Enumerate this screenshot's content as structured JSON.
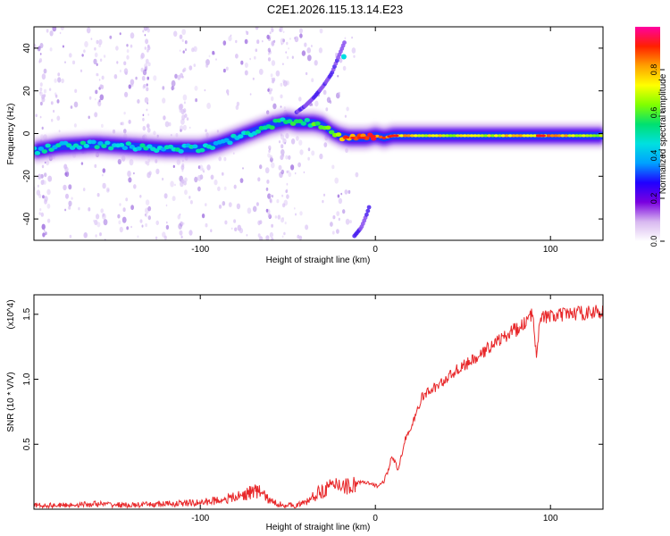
{
  "title": "C2E1.2026.115.13.14.E23",
  "chart_data": [
    {
      "type": "heatmap",
      "name": "spectrogram",
      "xlabel": "Height of straight line (km)",
      "ylabel": "Frequency (Hz)",
      "xlim": [
        -195,
        130
      ],
      "ylim": [
        -50,
        50
      ],
      "x_ticks": [
        -100,
        0,
        100
      ],
      "x_tick_labels": [
        "-100",
        "0",
        "100"
      ],
      "y_ticks": [
        -40,
        -20,
        0,
        20,
        40
      ],
      "y_tick_labels": [
        "-40",
        "-20",
        "0",
        "20",
        "40"
      ],
      "colorbar": {
        "label": "Normalized spectral amplitude",
        "range": [
          0.0,
          1.0
        ],
        "ticks": [
          0.0,
          0.2,
          0.4,
          0.6,
          0.8
        ],
        "tick_labels": [
          "0.0",
          "0.2",
          "0.4",
          "0.6",
          "0.8"
        ],
        "colors": [
          "#ffffff",
          "#d8b8f0",
          "#7a00e0",
          "#2000ff",
          "#00a0ff",
          "#00e0e0",
          "#00e070",
          "#80ff00",
          "#ffff00",
          "#ffa000",
          "#ff2000",
          "#ff00a0"
        ]
      },
      "ridge": {
        "x": [
          -195,
          -180,
          -160,
          -140,
          -120,
          -100,
          -90,
          -80,
          -70,
          -60,
          -55,
          -50,
          -45,
          -40,
          -35,
          -30,
          -25,
          -20,
          -15,
          -10,
          -5,
          0,
          5,
          10,
          20,
          40,
          60,
          80,
          100,
          120,
          130
        ],
        "y": [
          -8,
          -6,
          -5,
          -6,
          -7,
          -7,
          -5,
          -2,
          1,
          4,
          5,
          6,
          5,
          5,
          5,
          4,
          1,
          -1,
          -2,
          -2,
          -2,
          -1,
          -2,
          -1,
          -1,
          -1,
          -1,
          -1,
          -1,
          -1,
          -1
        ],
        "amplitude": [
          0.45,
          0.45,
          0.45,
          0.45,
          0.45,
          0.45,
          0.45,
          0.45,
          0.5,
          0.5,
          0.5,
          0.55,
          0.55,
          0.55,
          0.55,
          0.6,
          0.65,
          0.75,
          0.85,
          0.85,
          0.9,
          0.85,
          0.85,
          0.8,
          0.75,
          0.7,
          0.7,
          0.75,
          0.8,
          0.7,
          0.65
        ]
      },
      "secondary_ridge": {
        "x": [
          -45,
          -40,
          -35,
          -30,
          -25,
          -22,
          -20,
          -17
        ],
        "y": [
          10,
          13,
          17,
          22,
          28,
          34,
          38,
          44
        ]
      },
      "lower_ridge": {
        "x": [
          -12,
          -8,
          -5,
          -3
        ],
        "y": [
          -48,
          -44,
          -38,
          -33
        ]
      }
    },
    {
      "type": "line",
      "name": "snr",
      "xlabel": "Height of straight line (km)",
      "ylabel": "SNR (10 * V/V)",
      "ylabel_multiplier": "(x10^4)",
      "xlim": [
        -195,
        130
      ],
      "ylim": [
        0,
        1.65
      ],
      "x_ticks": [
        -100,
        0,
        100
      ],
      "x_tick_labels": [
        "-100",
        "0",
        "100"
      ],
      "y_ticks": [
        0.5,
        1.0,
        1.5
      ],
      "y_tick_labels": [
        "0.5",
        "1.0",
        "1.5"
      ],
      "series": [
        {
          "name": "SNR",
          "color": "#e8282a",
          "x": [
            -195,
            -180,
            -160,
            -140,
            -120,
            -100,
            -90,
            -80,
            -75,
            -70,
            -65,
            -60,
            -55,
            -50,
            -45,
            -40,
            -35,
            -30,
            -25,
            -20,
            -15,
            -10,
            -5,
            0,
            3,
            5,
            7,
            9,
            11,
            13,
            15,
            17,
            20,
            23,
            26,
            30,
            33,
            36,
            40,
            43,
            46,
            50,
            55,
            60,
            65,
            70,
            75,
            78,
            82,
            86,
            88,
            90,
            92,
            94,
            97,
            100,
            105,
            110,
            115,
            120,
            125,
            130
          ],
          "y": [
            0.03,
            0.03,
            0.04,
            0.03,
            0.04,
            0.05,
            0.07,
            0.09,
            0.11,
            0.14,
            0.13,
            0.06,
            0.04,
            0.03,
            0.03,
            0.05,
            0.1,
            0.15,
            0.17,
            0.2,
            0.17,
            0.21,
            0.2,
            0.18,
            0.19,
            0.22,
            0.28,
            0.4,
            0.36,
            0.3,
            0.42,
            0.55,
            0.6,
            0.72,
            0.85,
            0.9,
            0.93,
            0.95,
            1.0,
            1.03,
            1.07,
            1.1,
            1.14,
            1.18,
            1.25,
            1.3,
            1.33,
            1.38,
            1.38,
            1.45,
            1.47,
            1.5,
            1.2,
            1.48,
            1.48,
            1.48,
            1.49,
            1.5,
            1.51,
            1.51,
            1.52,
            1.51
          ]
        }
      ]
    }
  ]
}
